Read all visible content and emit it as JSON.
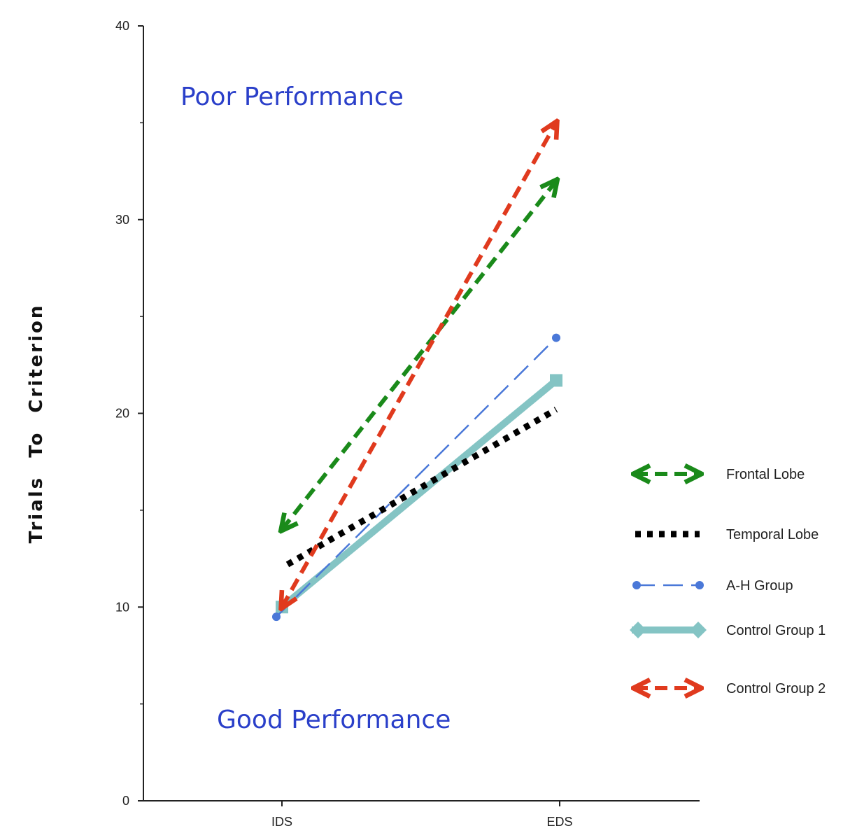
{
  "chart_data": {
    "type": "line",
    "title": "",
    "xlabel": "",
    "ylabel": "Trials To Criterion",
    "categories": [
      "IDS",
      "EDS"
    ],
    "ylim": [
      0,
      40
    ],
    "yticks": [
      "0",
      "10",
      "20",
      "30",
      "40"
    ],
    "grid": false,
    "legend_position": "right",
    "annotations": [
      "Poor Performance",
      "Good Performance"
    ],
    "series": [
      {
        "name": "Frontal Lobe",
        "values": [
          14,
          32
        ],
        "color": "#1a8a1a",
        "style": "dashed-double-arrow"
      },
      {
        "name": "Temporal Lobe",
        "values": [
          12.2,
          20.2
        ],
        "color": "#000000",
        "style": "dotted"
      },
      {
        "name": "A-H Group",
        "values": [
          9.5,
          23.9
        ],
        "color": "#4a78d8",
        "style": "thin-dashed-dot-markers"
      },
      {
        "name": "Control Group 1",
        "values": [
          10,
          21.7
        ],
        "color": "#84c4c4",
        "style": "thick-solid"
      },
      {
        "name": "Control Group 2",
        "values": [
          10,
          35
        ],
        "color": "#e03a1e",
        "style": "dashed-double-arrow"
      }
    ]
  }
}
